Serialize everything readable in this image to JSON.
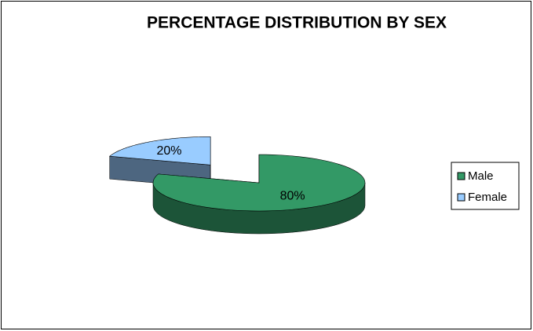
{
  "chart_data": {
    "type": "pie",
    "title": "PERCENTAGE DISTRIBUTION BY SEX",
    "categories": [
      "Male",
      "Female"
    ],
    "values": [
      80,
      20
    ],
    "value_labels": [
      "80%",
      "20%"
    ],
    "colors": [
      "#339966",
      "#99ccff"
    ],
    "legend": "right"
  }
}
